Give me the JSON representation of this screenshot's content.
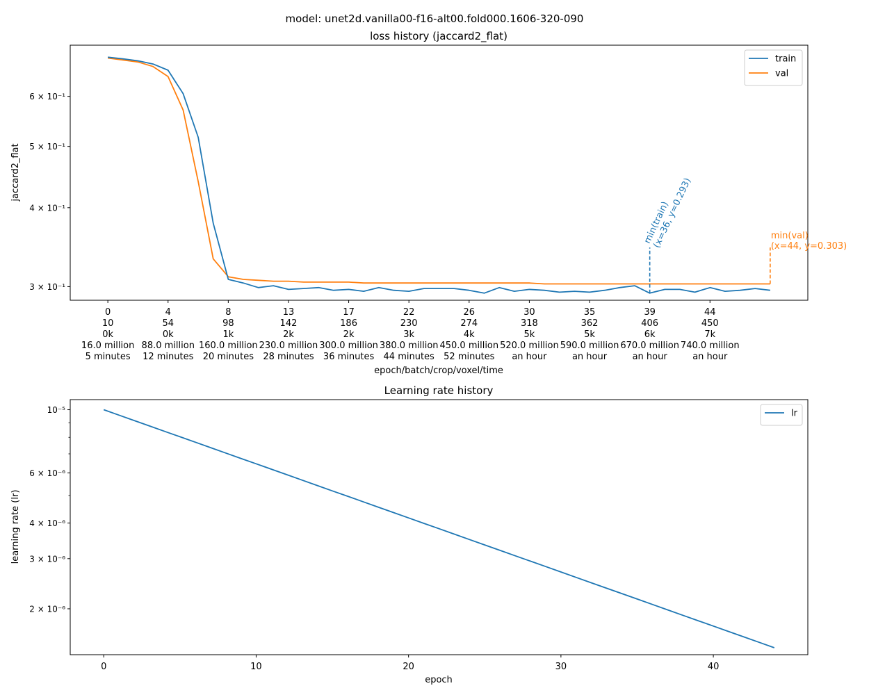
{
  "figure": {
    "suptitle": "model: unet2d.vanilla00-f16-alt00.fold000.1606-320-090"
  },
  "chart_data": [
    {
      "type": "line",
      "title": "loss history (jaccard2_flat)",
      "ylabel": "jaccard2_flat",
      "xlabel": "epoch/batch/crop/voxel/time",
      "yscale": "log",
      "xlim": [
        -2.5,
        46.5
      ],
      "ylim": [
        0.2855,
        0.723
      ],
      "grid": false,
      "legend_position": "top-right",
      "yticks": [
        {
          "value": 0.6,
          "label": "6 × 10⁻¹"
        },
        {
          "value": 0.5,
          "label": "5 × 10⁻¹"
        },
        {
          "value": 0.4,
          "label": "4 × 10⁻¹"
        },
        {
          "value": 0.3,
          "label": "3 × 10⁻¹"
        }
      ],
      "xticks": [
        {
          "x": 0,
          "lines": [
            "0",
            "10",
            "0k",
            "16.0 million",
            "5 minutes"
          ]
        },
        {
          "x": 4,
          "lines": [
            "4",
            "54",
            "0k",
            "88.0 million",
            "12 minutes"
          ]
        },
        {
          "x": 8,
          "lines": [
            "8",
            "98",
            "1k",
            "160.0 million",
            "20 minutes"
          ]
        },
        {
          "x": 12,
          "lines": [
            "13",
            "142",
            "2k",
            "230.0 million",
            "28 minutes"
          ]
        },
        {
          "x": 16,
          "lines": [
            "17",
            "186",
            "2k",
            "300.0 million",
            "36 minutes"
          ]
        },
        {
          "x": 20,
          "lines": [
            "22",
            "230",
            "3k",
            "380.0 million",
            "44 minutes"
          ]
        },
        {
          "x": 24,
          "lines": [
            "26",
            "274",
            "4k",
            "450.0 million",
            "52 minutes"
          ]
        },
        {
          "x": 28,
          "lines": [
            "30",
            "318",
            "5k",
            "520.0 million",
            "an hour"
          ]
        },
        {
          "x": 32,
          "lines": [
            "35",
            "362",
            "5k",
            "590.0 million",
            "an hour"
          ]
        },
        {
          "x": 36,
          "lines": [
            "39",
            "406",
            "6k",
            "670.0 million",
            "an hour"
          ]
        },
        {
          "x": 40,
          "lines": [
            "44",
            "450",
            "7k",
            "740.0 million",
            "an hour"
          ]
        }
      ],
      "x": [
        0,
        1,
        2,
        3,
        4,
        5,
        6,
        7,
        8,
        9,
        10,
        11,
        12,
        13,
        14,
        15,
        16,
        17,
        18,
        19,
        20,
        21,
        22,
        23,
        24,
        25,
        26,
        27,
        28,
        29,
        30,
        31,
        32,
        33,
        34,
        35,
        36,
        37,
        38,
        39,
        40,
        41,
        42,
        43,
        44
      ],
      "series": [
        {
          "name": "train",
          "color": "#1f77b4",
          "values": [
            0.692,
            0.688,
            0.683,
            0.675,
            0.66,
            0.606,
            0.517,
            0.378,
            0.308,
            0.304,
            0.299,
            0.301,
            0.297,
            0.298,
            0.299,
            0.296,
            0.297,
            0.295,
            0.299,
            0.296,
            0.295,
            0.298,
            0.298,
            0.298,
            0.296,
            0.293,
            0.299,
            0.295,
            0.297,
            0.296,
            0.294,
            0.295,
            0.294,
            0.296,
            0.299,
            0.301,
            0.293,
            0.297,
            0.297,
            0.294,
            0.299,
            0.295,
            0.296,
            0.298,
            0.296
          ]
        },
        {
          "name": "val",
          "color": "#ff7f0e",
          "values": [
            0.69,
            0.685,
            0.68,
            0.669,
            0.645,
            0.571,
            0.44,
            0.332,
            0.311,
            0.308,
            0.307,
            0.306,
            0.306,
            0.305,
            0.305,
            0.305,
            0.305,
            0.304,
            0.304,
            0.304,
            0.304,
            0.304,
            0.304,
            0.304,
            0.304,
            0.304,
            0.304,
            0.304,
            0.304,
            0.303,
            0.303,
            0.303,
            0.303,
            0.303,
            0.303,
            0.303,
            0.303,
            0.303,
            0.303,
            0.303,
            0.303,
            0.303,
            0.303,
            0.303,
            0.303
          ]
        }
      ],
      "annotations": [
        {
          "series": "train",
          "x": 36,
          "y": 0.293,
          "color": "#1f77b4",
          "lines": [
            "min(train)",
            "(x=36, y=0.293)"
          ],
          "rotation": 65
        },
        {
          "series": "val",
          "x": 44,
          "y": 0.303,
          "color": "#ff7f0e",
          "lines": [
            "min(val)",
            "(x=44, y=0.303)"
          ],
          "rotation": 0
        }
      ]
    },
    {
      "type": "line",
      "title": "Learning rate history",
      "ylabel": "learning rate (lr)",
      "xlabel": "epoch",
      "yscale": "log",
      "xlim": [
        -2.2,
        46.2
      ],
      "ylim": [
        1.38e-06,
        1.085e-05
      ],
      "grid": false,
      "legend_position": "top-right",
      "xticks": [
        0,
        10,
        20,
        30,
        40
      ],
      "yticks": [
        {
          "value": 1e-05,
          "label": "10⁻⁵"
        },
        {
          "value": 6e-06,
          "label": "6 × 10⁻⁶"
        },
        {
          "value": 4e-06,
          "label": "4 × 10⁻⁶"
        },
        {
          "value": 3e-06,
          "label": "3 × 10⁻⁶"
        },
        {
          "value": 2e-06,
          "label": "2 × 10⁻⁶"
        }
      ],
      "minor_yticks": [
        9e-06,
        8e-06,
        7e-06,
        5e-06
      ],
      "series": [
        {
          "name": "lr",
          "color": "#1f77b4",
          "x": [
            0,
            44
          ],
          "values": [
            1e-05,
            1.46e-06
          ],
          "log_interpolate": true
        }
      ]
    }
  ]
}
